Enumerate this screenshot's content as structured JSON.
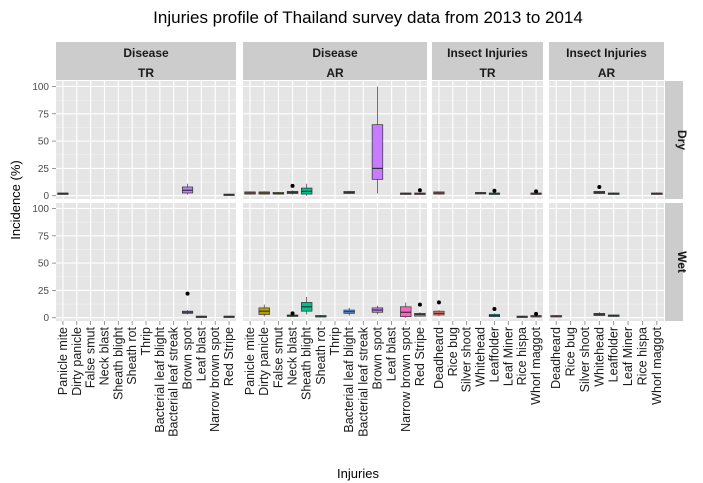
{
  "chart_data": {
    "type": "boxplot",
    "title": "Injuries profile of Thailand survey data from 2013 to 2014",
    "xlabel": "Injuries",
    "ylabel": "Incidence (%)",
    "ylim": [
      -3,
      105
    ],
    "y_ticks": [
      0,
      25,
      50,
      75,
      100
    ],
    "grid": true,
    "columns": [
      {
        "top": "Disease",
        "bottom": "TR",
        "categories": [
          "Panicle mite",
          "Dirty panicle",
          "False smut",
          "Neck blast",
          "Sheath blight",
          "Sheath rot",
          "Thrip",
          "Bacterial leaf blight",
          "Bacterial leaf streak",
          "Brown spot",
          "Leaf blast",
          "Narrow brown spot",
          "Red Stripe"
        ]
      },
      {
        "top": "Disease",
        "bottom": "AR",
        "categories": [
          "Panicle mite",
          "Dirty panicle",
          "False smut",
          "Neck blast",
          "Sheath blight",
          "Sheath rot",
          "Thrip",
          "Bacterial leaf blight",
          "Bacterial leaf streak",
          "Brown spot",
          "Leaf blast",
          "Narrow brown spot",
          "Red Stripe"
        ]
      },
      {
        "top": "Insect Injuries",
        "bottom": "TR",
        "categories": [
          "Deadheard",
          "Rice bug",
          "Silver shoot",
          "Whitehead",
          "Leaffolder",
          "Leaf Miner",
          "Rice hispa",
          "Whorl maggot"
        ]
      },
      {
        "top": "Insect Injuries",
        "bottom": "AR",
        "categories": [
          "Deadheard",
          "Rice bug",
          "Silver shoot",
          "Whitehead",
          "Leaffolder",
          "Leaf Miner",
          "Rice hispa",
          "Whorl maggot"
        ]
      }
    ],
    "rows": [
      "Dry",
      "Wet"
    ],
    "colors": {
      "Panicle mite": "#f8766d",
      "Dirty panicle": "#b79f00",
      "False smut": "#7cae00",
      "Neck blast": "#00ba38",
      "Sheath blight": "#00c08b",
      "Sheath rot": "#00bfc4",
      "Thrip": "#00b4ef",
      "Bacterial leaf blight": "#619cff",
      "Bacterial leaf streak": "#9f8cff",
      "Brown spot": "#c77cff",
      "Leaf blast": "#f564e3",
      "Narrow brown spot": "#ff61c3",
      "Red Stripe": "#ff6c91",
      "Deadheard": "#f8766d",
      "Rice bug": "#cd9600",
      "Silver shoot": "#7cae00",
      "Whitehead": "#00be67",
      "Leaffolder": "#00bfc4",
      "Leaf Miner": "#00a9ff",
      "Rice hispa": "#c77cff",
      "Whorl maggot": "#ff61cc"
    },
    "boxes": [
      {
        "row": "Dry",
        "col": 0,
        "cat": "Panicle mite",
        "q1": 1.5,
        "med": 2,
        "q3": 2.5,
        "lo": 1.5,
        "hi": 2.5,
        "out": []
      },
      {
        "row": "Dry",
        "col": 0,
        "cat": "Brown spot",
        "q1": 2.5,
        "med": 5,
        "q3": 8,
        "lo": 1,
        "hi": 11,
        "out": []
      },
      {
        "row": "Dry",
        "col": 0,
        "cat": "Red Stripe",
        "q1": 0.5,
        "med": 1,
        "q3": 1.5,
        "lo": 0,
        "hi": 2,
        "out": []
      },
      {
        "row": "Dry",
        "col": 1,
        "cat": "Panicle mite",
        "q1": 1.5,
        "med": 2.5,
        "q3": 3.5,
        "lo": 1,
        "hi": 4,
        "out": []
      },
      {
        "row": "Dry",
        "col": 1,
        "cat": "Dirty panicle",
        "q1": 1.5,
        "med": 2.5,
        "q3": 3.5,
        "lo": 1,
        "hi": 4,
        "out": []
      },
      {
        "row": "Dry",
        "col": 1,
        "cat": "False smut",
        "q1": 1.5,
        "med": 2,
        "q3": 3,
        "lo": 1,
        "hi": 3.5,
        "out": []
      },
      {
        "row": "Dry",
        "col": 1,
        "cat": "Neck blast",
        "q1": 2,
        "med": 3,
        "q3": 4,
        "lo": 1,
        "hi": 5,
        "out": [
          9
        ]
      },
      {
        "row": "Dry",
        "col": 1,
        "cat": "Sheath blight",
        "q1": 1.5,
        "med": 4,
        "q3": 7,
        "lo": 0,
        "hi": 11,
        "out": []
      },
      {
        "row": "Dry",
        "col": 1,
        "cat": "Bacterial leaf blight",
        "q1": 2,
        "med": 3,
        "q3": 4,
        "lo": 1.5,
        "hi": 4.5,
        "out": []
      },
      {
        "row": "Dry",
        "col": 1,
        "cat": "Brown spot",
        "q1": 15,
        "med": 25,
        "q3": 65,
        "lo": 2,
        "hi": 100,
        "out": []
      },
      {
        "row": "Dry",
        "col": 1,
        "cat": "Narrow brown spot",
        "q1": 1.5,
        "med": 2,
        "q3": 2.5,
        "lo": 1,
        "hi": 3,
        "out": []
      },
      {
        "row": "Dry",
        "col": 1,
        "cat": "Red Stripe",
        "q1": 1.5,
        "med": 2,
        "q3": 2.5,
        "lo": 1,
        "hi": 3,
        "out": [
          5
        ]
      },
      {
        "row": "Dry",
        "col": 2,
        "cat": "Deadheard",
        "q1": 1.5,
        "med": 2.5,
        "q3": 3.5,
        "lo": 1,
        "hi": 4,
        "out": []
      },
      {
        "row": "Dry",
        "col": 2,
        "cat": "Whitehead",
        "q1": 2,
        "med": 2.5,
        "q3": 3,
        "lo": 1.5,
        "hi": 3.5,
        "out": []
      },
      {
        "row": "Dry",
        "col": 2,
        "cat": "Leaffolder",
        "q1": 1.5,
        "med": 2,
        "q3": 2.5,
        "lo": 1,
        "hi": 3,
        "out": [
          4.5
        ]
      },
      {
        "row": "Dry",
        "col": 2,
        "cat": "Whorl maggot",
        "q1": 1.5,
        "med": 2,
        "q3": 2.5,
        "lo": 1,
        "hi": 3,
        "out": [
          4
        ]
      },
      {
        "row": "Dry",
        "col": 3,
        "cat": "Whitehead",
        "q1": 2,
        "med": 3,
        "q3": 4,
        "lo": 1.5,
        "hi": 4.5,
        "out": [
          8
        ]
      },
      {
        "row": "Dry",
        "col": 3,
        "cat": "Leaffolder",
        "q1": 1.5,
        "med": 2,
        "q3": 2.5,
        "lo": 1,
        "hi": 3,
        "out": []
      },
      {
        "row": "Dry",
        "col": 3,
        "cat": "Whorl maggot",
        "q1": 1.5,
        "med": 2,
        "q3": 2.5,
        "lo": 1,
        "hi": 3,
        "out": []
      },
      {
        "row": "Wet",
        "col": 0,
        "cat": "Brown spot",
        "q1": 4,
        "med": 5,
        "q3": 6,
        "lo": 3,
        "hi": 7,
        "out": [
          22
        ]
      },
      {
        "row": "Wet",
        "col": 0,
        "cat": "Leaf blast",
        "q1": 0.5,
        "med": 1,
        "q3": 1.5,
        "lo": 0,
        "hi": 2,
        "out": []
      },
      {
        "row": "Wet",
        "col": 0,
        "cat": "Red Stripe",
        "q1": 0.5,
        "med": 1,
        "q3": 1.5,
        "lo": 0,
        "hi": 2,
        "out": []
      },
      {
        "row": "Wet",
        "col": 1,
        "cat": "Dirty panicle",
        "q1": 3,
        "med": 6,
        "q3": 9,
        "lo": 1,
        "hi": 12,
        "out": []
      },
      {
        "row": "Wet",
        "col": 1,
        "cat": "Neck blast",
        "q1": 1.5,
        "med": 2,
        "q3": 2.5,
        "lo": 1,
        "hi": 3,
        "out": [
          4
        ]
      },
      {
        "row": "Wet",
        "col": 1,
        "cat": "Sheath blight",
        "q1": 6,
        "med": 10,
        "q3": 14,
        "lo": 3,
        "hi": 19,
        "out": []
      },
      {
        "row": "Wet",
        "col": 1,
        "cat": "Sheath rot",
        "q1": 1,
        "med": 1.5,
        "q3": 2,
        "lo": 0.5,
        "hi": 2.5,
        "out": []
      },
      {
        "row": "Wet",
        "col": 1,
        "cat": "Bacterial leaf blight",
        "q1": 4,
        "med": 5.5,
        "q3": 7,
        "lo": 2,
        "hi": 9,
        "out": []
      },
      {
        "row": "Wet",
        "col": 1,
        "cat": "Brown spot",
        "q1": 5,
        "med": 7,
        "q3": 9,
        "lo": 3,
        "hi": 11,
        "out": []
      },
      {
        "row": "Wet",
        "col": 1,
        "cat": "Narrow brown spot",
        "q1": 1,
        "med": 5,
        "q3": 10,
        "lo": 0,
        "hi": 14,
        "out": []
      },
      {
        "row": "Wet",
        "col": 1,
        "cat": "Red Stripe",
        "q1": 1.5,
        "med": 3,
        "q3": 4,
        "lo": 1,
        "hi": 5,
        "out": [
          12
        ]
      },
      {
        "row": "Wet",
        "col": 2,
        "cat": "Deadheard",
        "q1": 2.5,
        "med": 4,
        "q3": 6,
        "lo": 1.5,
        "hi": 7,
        "out": [
          14
        ]
      },
      {
        "row": "Wet",
        "col": 2,
        "cat": "Leaffolder",
        "q1": 1,
        "med": 2,
        "q3": 3,
        "lo": 0.5,
        "hi": 4,
        "out": [
          8
        ]
      },
      {
        "row": "Wet",
        "col": 2,
        "cat": "Rice hispa",
        "q1": 0.5,
        "med": 1,
        "q3": 1.5,
        "lo": 0,
        "hi": 2,
        "out": []
      },
      {
        "row": "Wet",
        "col": 2,
        "cat": "Whorl maggot",
        "q1": 1,
        "med": 1.5,
        "q3": 2,
        "lo": 0.5,
        "hi": 2.5,
        "out": [
          3.5
        ]
      },
      {
        "row": "Wet",
        "col": 3,
        "cat": "Deadheard",
        "q1": 1,
        "med": 1.5,
        "q3": 2,
        "lo": 0.5,
        "hi": 2.5,
        "out": []
      },
      {
        "row": "Wet",
        "col": 3,
        "cat": "Whitehead",
        "q1": 2,
        "med": 3,
        "q3": 4,
        "lo": 1.5,
        "hi": 5,
        "out": []
      },
      {
        "row": "Wet",
        "col": 3,
        "cat": "Leaffolder",
        "q1": 1.5,
        "med": 2,
        "q3": 2.5,
        "lo": 1,
        "hi": 3,
        "out": []
      }
    ]
  }
}
